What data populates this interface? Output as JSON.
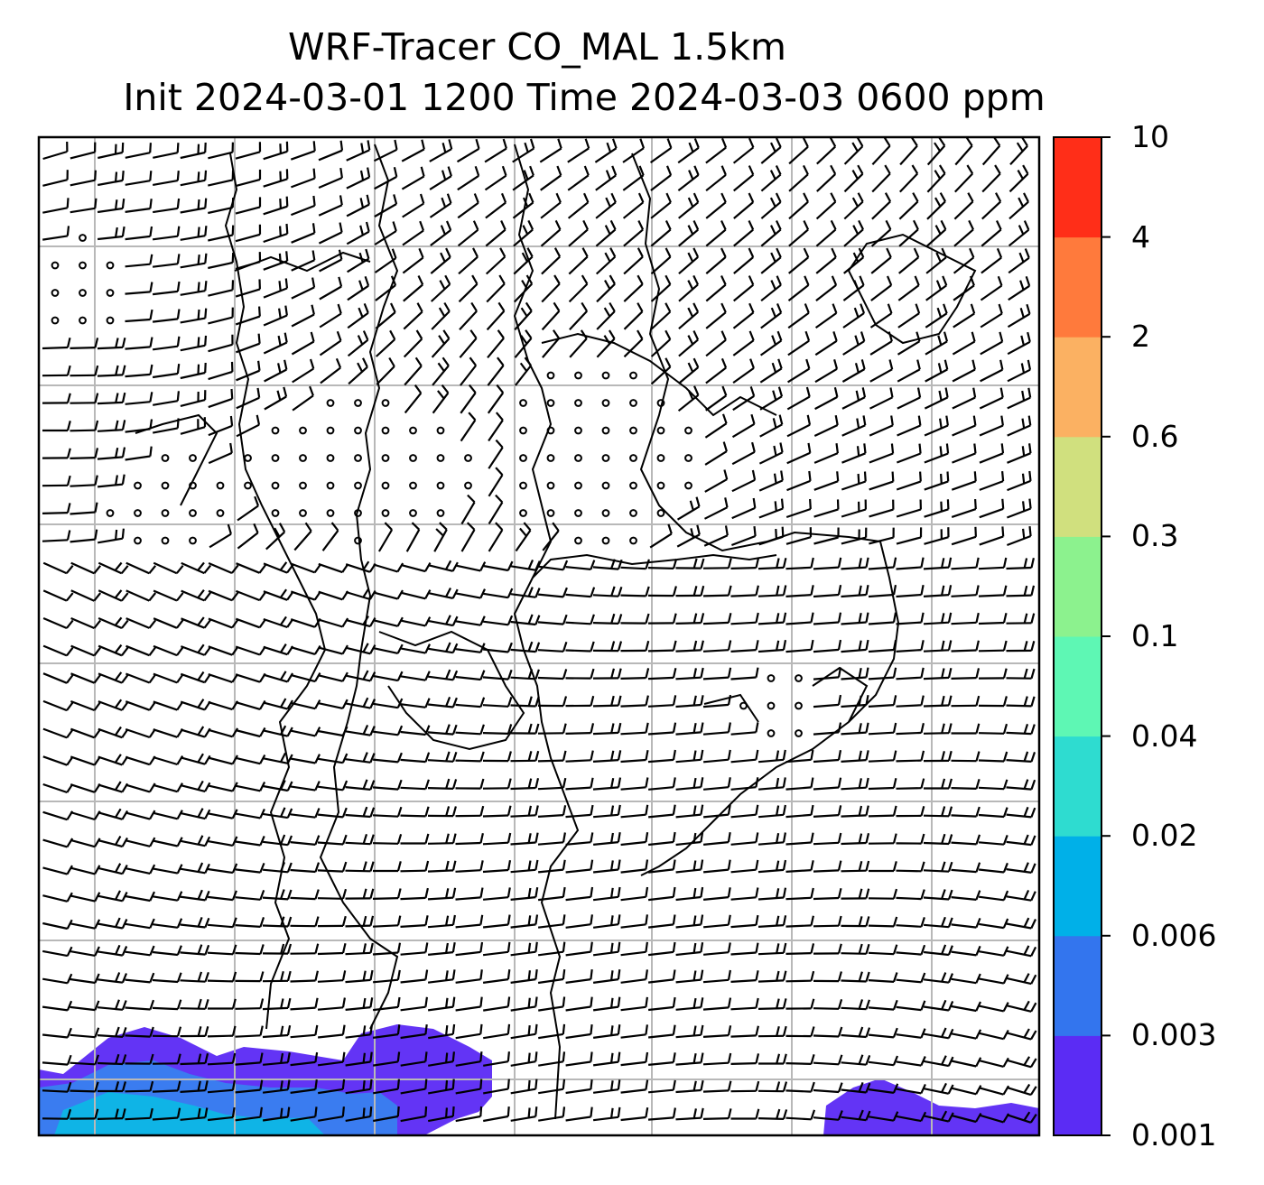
{
  "title": {
    "line1": "WRF-Tracer CO_MAL 1.5km",
    "line2": "Init 2024-03-01 1200 Time 2024-03-03 0600 ppm"
  },
  "colorbar": {
    "levels": [
      "0.001",
      "0.003",
      "0.006",
      "0.02",
      "0.04",
      "0.1",
      "0.3",
      "0.6",
      "2",
      "4",
      "10"
    ],
    "colors": [
      "#5b2cf4",
      "#3375ee",
      "#00b0e8",
      "#2edcd0",
      "#5ef7b4",
      "#8cf28e",
      "#d0e07e",
      "#fbb162",
      "#ff7a3c",
      "#ff2e18"
    ]
  },
  "map": {
    "tracer_color_primary": "#6334f5",
    "tracer_color_secondary": "#3a7cf0",
    "tracer_color_tertiary": "#0fb4e6"
  }
}
